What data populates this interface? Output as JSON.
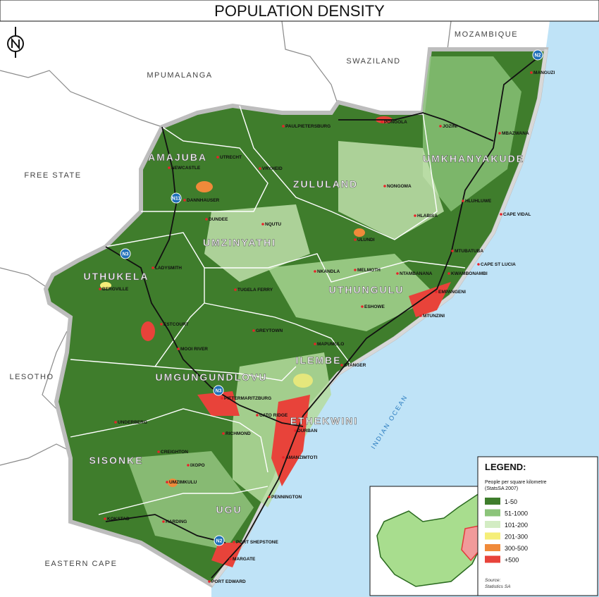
{
  "title": "POPULATION DENSITY",
  "ocean": "INDIAN OCEAN",
  "regions": [
    "MOZAMBIQUE",
    "SWAZILAND",
    "MPUMALANGA",
    "FREE STATE",
    "LESOTHO",
    "EASTERN CAPE"
  ],
  "districts": [
    "AMAJUBA",
    "ZULULAND",
    "UMKHANYAKUDE",
    "UMZINYATHI",
    "UTHUKELA",
    "UTHUNGULU",
    "ILEMBE",
    "UMGUNGUNDLOVU",
    "ETHEKWINI",
    "SISONKE",
    "UGU"
  ],
  "roads": [
    "N2",
    "N11",
    "N3",
    "N3",
    "N2"
  ],
  "towns": [
    "MANGUZI",
    "PONGOLA",
    "PAULPIETERSBURG",
    "JOZINI",
    "MBAZWANA",
    "UTRECHT",
    "NEWCASTLE",
    "VRYHEID",
    "NONGOMA",
    "DANNHAUSER",
    "HLUHLUWE",
    "CAPE VIDAL",
    "HLABISA",
    "DUNDEE",
    "NQUTU",
    "ULUNDI",
    "MTUBATUBA",
    "LADYSMITH",
    "CAPE ST LUCIA",
    "NKANDLA",
    "MELMOTH",
    "NTAMBANANA",
    "KWAMBONAMBI",
    "BERGVILLE",
    "TUGELA FERRY",
    "EMPANGENI",
    "ESHOWE",
    "MTUNZINI",
    "ESTCOURT",
    "GREYTOWN",
    "MAPUMULO",
    "MOOI RIVER",
    "STANGER",
    "PIETERMARITZBURG",
    "CATO RIDGE",
    "DURBAN",
    "UNDERBERG",
    "RICHMOND",
    "CREIGHTON",
    "AMANZIMTOTI",
    "IXOPO",
    "UMZIMKULU",
    "PENNINGTON",
    "KOKSTAD",
    "HARDING",
    "PORT SHEPSTONE",
    "MARGATE",
    "PORT EDWARD"
  ],
  "legend": {
    "title": "LEGEND:",
    "subtitle": [
      "People per square kilometre",
      "(StatsSA 2007)"
    ],
    "items": [
      {
        "label": "1-50",
        "color": "#3f7d2c"
      },
      {
        "label": "51-1000",
        "color": "#8cc47a"
      },
      {
        "label": "101-200",
        "color": "#d3ecc3"
      },
      {
        "label": "201-300",
        "color": "#f5ee78"
      },
      {
        "label": "300-500",
        "color": "#f08a3a"
      },
      {
        "label": "+500",
        "color": "#e8433a"
      }
    ],
    "source": [
      "Source:",
      "Statistics SA"
    ]
  }
}
